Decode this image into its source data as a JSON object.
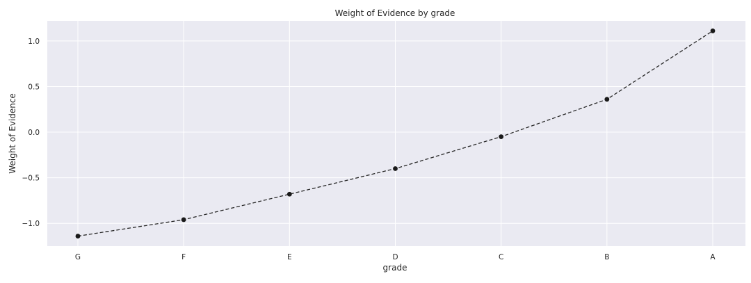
{
  "chart_data": {
    "type": "line",
    "title": "Weight of Evidence by grade",
    "xlabel": "grade",
    "ylabel": "Weight of Evidence",
    "categories": [
      "G",
      "F",
      "E",
      "D",
      "C",
      "B",
      "A"
    ],
    "series": [
      {
        "values": [
          -1.14,
          -0.96,
          -0.68,
          -0.4,
          -0.05,
          0.36,
          1.11
        ]
      }
    ],
    "ylim": [
      -1.25,
      1.22
    ],
    "yticks": [
      -1.0,
      -0.5,
      0.0,
      0.5,
      1.0
    ],
    "ytick_labels": [
      "−1.0",
      "−0.5",
      "0.0",
      "0.5",
      "1.0"
    ],
    "grid": true,
    "line_style": "dashed",
    "marker": "circle",
    "colors": {
      "background": "#eaeaf2",
      "grid": "#ffffff",
      "line": "#262626"
    }
  }
}
